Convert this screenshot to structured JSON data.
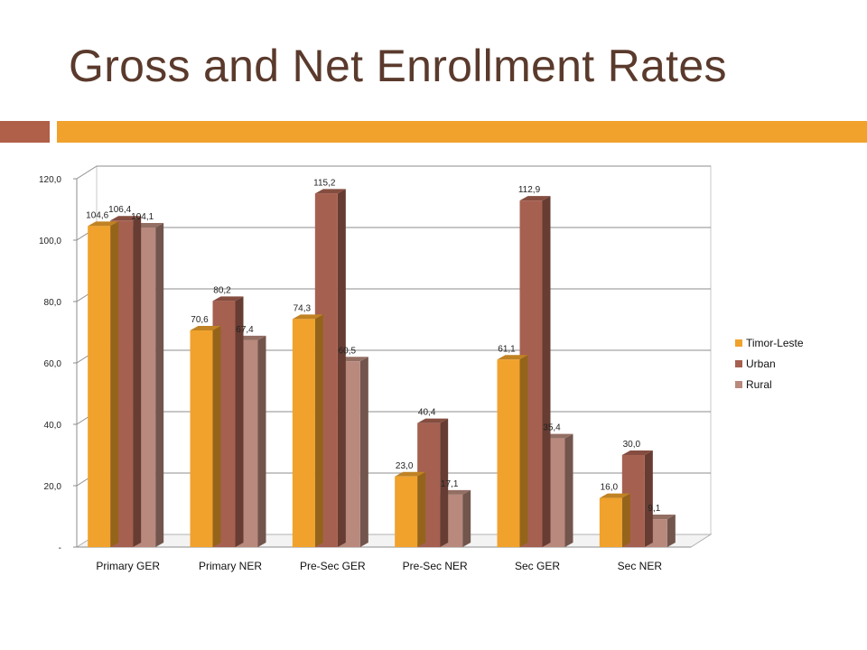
{
  "slide": {
    "title": "Gross and Net Enrollment Rates",
    "accent_left_color": "#b05f48",
    "accent_right_color": "#f0a22c"
  },
  "chart_data": {
    "type": "bar",
    "style": "3d-clustered",
    "categories": [
      "Primary GER",
      "Primary NER",
      "Pre-Sec GER",
      "Pre-Sec NER",
      "Sec GER",
      "Sec NER"
    ],
    "series": [
      {
        "name": "Timor-Leste",
        "color": "#f0a22c",
        "values": [
          104.6,
          70.6,
          74.3,
          23.0,
          61.1,
          16.0
        ],
        "labels": [
          "104,6",
          "70,6",
          "74,3",
          "23,0",
          "61,1",
          "16,0"
        ]
      },
      {
        "name": "Urban",
        "color": "#a66050",
        "values": [
          106.4,
          80.2,
          115.2,
          40.4,
          112.9,
          30.0
        ],
        "labels": [
          "106,4",
          "80,2",
          "115,2",
          "40,4",
          "112,9",
          "30,0"
        ]
      },
      {
        "name": "Rural",
        "color": "#b8897c",
        "values": [
          104.1,
          67.4,
          60.5,
          17.1,
          35.4,
          9.1
        ],
        "labels": [
          "104,1",
          "67,4",
          "60,5",
          "17,1",
          "35,4",
          "9,1"
        ]
      }
    ],
    "y_ticks": [
      0,
      20,
      40,
      60,
      80,
      100,
      120
    ],
    "y_tick_labels": [
      "-",
      "20,0",
      "40,0",
      "60,0",
      "80,0",
      "100,0",
      "120,0"
    ],
    "ylim": [
      0,
      120
    ],
    "grid": true,
    "legend_position": "right"
  }
}
